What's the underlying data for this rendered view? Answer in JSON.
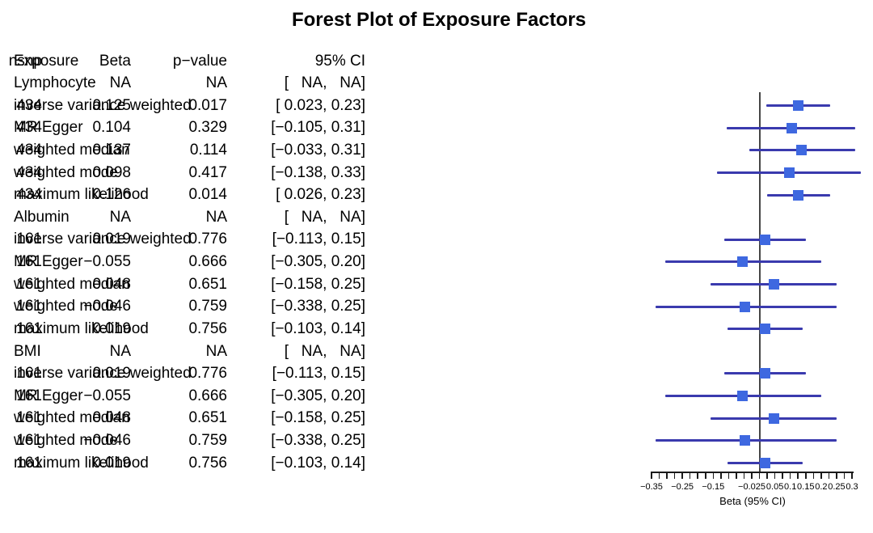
{
  "title": "Forest Plot of Exposure Factors",
  "table": {
    "headers": {
      "exposure": "Exposure",
      "nsnp": "nsnp",
      "beta": "Beta",
      "pvalue": "p−value",
      "ci": "95% CI"
    }
  },
  "colors": {
    "box": "#3E68E0",
    "ci_line": "#3A3AAE",
    "zero_line": "#454545",
    "axis": "#1a1a1a",
    "text": "#000000",
    "background": "#ffffff"
  },
  "chart_data": {
    "type": "forest",
    "title": "Forest Plot of Exposure Factors",
    "xlabel": "Beta (95% CI)",
    "xlim": [
      -0.35,
      0.3
    ],
    "zero_line": 0,
    "minor_tick_step": 0.025,
    "ticks": [
      {
        "value": -0.35,
        "label": "−0.35"
      },
      {
        "value": -0.25,
        "label": "−0.25"
      },
      {
        "value": -0.15,
        "label": "−0.15"
      },
      {
        "value": -0.025,
        "label": "−0.025"
      },
      {
        "value": 0.05,
        "label": "0.05"
      },
      {
        "value": 0.1,
        "label": "0.1"
      },
      {
        "value": 0.15,
        "label": "0.15"
      },
      {
        "value": 0.2,
        "label": "0.2"
      },
      {
        "value": 0.25,
        "label": "0.25"
      },
      {
        "value": 0.3,
        "label": "0.3"
      }
    ],
    "rows": [
      {
        "label": "Lymphocyte",
        "group": true,
        "nsnp": "",
        "beta": "NA",
        "pvalue": "NA",
        "ci": "[   NA,   NA]",
        "est": null,
        "lo": null,
        "hi": null
      },
      {
        "label": "inverse variance weighted",
        "group": false,
        "nsnp": "434",
        "beta": "0.125",
        "pvalue": "0.017",
        "ci": "[ 0.023, 0.23]",
        "est": 0.125,
        "lo": 0.023,
        "hi": 0.23
      },
      {
        "label": "MR Egger",
        "group": false,
        "nsnp": "434",
        "beta": "0.104",
        "pvalue": "0.329",
        "ci": "[−0.105, 0.31]",
        "est": 0.104,
        "lo": -0.105,
        "hi": 0.31
      },
      {
        "label": "weighted median",
        "group": false,
        "nsnp": "434",
        "beta": "0.137",
        "pvalue": "0.114",
        "ci": "[−0.033, 0.31]",
        "est": 0.137,
        "lo": -0.033,
        "hi": 0.31
      },
      {
        "label": "weighted mode",
        "group": false,
        "nsnp": "434",
        "beta": "0.098",
        "pvalue": "0.417",
        "ci": "[−0.138, 0.33]",
        "est": 0.098,
        "lo": -0.138,
        "hi": 0.33
      },
      {
        "label": "maximum likelihood",
        "group": false,
        "nsnp": "434",
        "beta": "0.126",
        "pvalue": "0.014",
        "ci": "[ 0.026, 0.23]",
        "est": 0.126,
        "lo": 0.026,
        "hi": 0.23
      },
      {
        "label": "Albumin",
        "group": true,
        "nsnp": "",
        "beta": "NA",
        "pvalue": "NA",
        "ci": "[   NA,   NA]",
        "est": null,
        "lo": null,
        "hi": null
      },
      {
        "label": "inverse variance weighted",
        "group": false,
        "nsnp": "161",
        "beta": "0.019",
        "pvalue": "0.776",
        "ci": "[−0.113, 0.15]",
        "est": 0.019,
        "lo": -0.113,
        "hi": 0.15
      },
      {
        "label": "MR Egger",
        "group": false,
        "nsnp": "161",
        "beta": "−0.055",
        "pvalue": "0.666",
        "ci": "[−0.305, 0.20]",
        "est": -0.055,
        "lo": -0.305,
        "hi": 0.2
      },
      {
        "label": "weighted median",
        "group": false,
        "nsnp": "161",
        "beta": "0.048",
        "pvalue": "0.651",
        "ci": "[−0.158, 0.25]",
        "est": 0.048,
        "lo": -0.158,
        "hi": 0.25
      },
      {
        "label": "weighted mode",
        "group": false,
        "nsnp": "161",
        "beta": "−0.046",
        "pvalue": "0.759",
        "ci": "[−0.338, 0.25]",
        "est": -0.046,
        "lo": -0.338,
        "hi": 0.25
      },
      {
        "label": "maximum likelihood",
        "group": false,
        "nsnp": "161",
        "beta": "0.019",
        "pvalue": "0.756",
        "ci": "[−0.103, 0.14]",
        "est": 0.019,
        "lo": -0.103,
        "hi": 0.14
      },
      {
        "label": "BMI",
        "group": true,
        "nsnp": "",
        "beta": "NA",
        "pvalue": "NA",
        "ci": "[   NA,   NA]",
        "est": null,
        "lo": null,
        "hi": null
      },
      {
        "label": "inverse variance weighted",
        "group": false,
        "nsnp": "161",
        "beta": "0.019",
        "pvalue": "0.776",
        "ci": "[−0.113, 0.15]",
        "est": 0.019,
        "lo": -0.113,
        "hi": 0.15
      },
      {
        "label": "MR Egger",
        "group": false,
        "nsnp": "161",
        "beta": "−0.055",
        "pvalue": "0.666",
        "ci": "[−0.305, 0.20]",
        "est": -0.055,
        "lo": -0.305,
        "hi": 0.2
      },
      {
        "label": "weighted median",
        "group": false,
        "nsnp": "161",
        "beta": "0.048",
        "pvalue": "0.651",
        "ci": "[−0.158, 0.25]",
        "est": 0.048,
        "lo": -0.158,
        "hi": 0.25
      },
      {
        "label": "weighted mode",
        "group": false,
        "nsnp": "161",
        "beta": "−0.046",
        "pvalue": "0.759",
        "ci": "[−0.338, 0.25]",
        "est": -0.046,
        "lo": -0.338,
        "hi": 0.25
      },
      {
        "label": "maximum likelihood",
        "group": false,
        "nsnp": "161",
        "beta": "0.019",
        "pvalue": "0.756",
        "ci": "[−0.103, 0.14]",
        "est": 0.019,
        "lo": -0.103,
        "hi": 0.14
      }
    ]
  }
}
